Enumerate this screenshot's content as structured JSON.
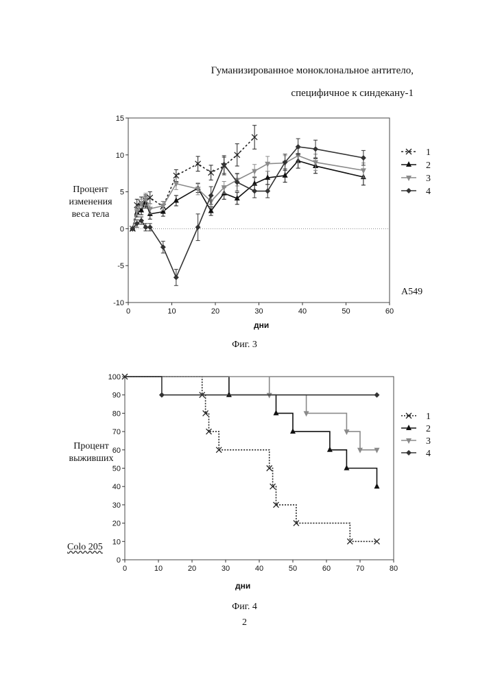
{
  "header": {
    "line1": "Гуманизированное моноклональное антитело,",
    "line2": "специфичное к синдекану-1"
  },
  "page_number": "2",
  "chart_data": [
    {
      "type": "line",
      "caption": "Фиг. 3",
      "ylabel": "Процент изменения веса тела",
      "xlabel": "дни",
      "annotation": "A549",
      "xlim": [
        0,
        60
      ],
      "ylim": [
        -10,
        15
      ],
      "xticks": [
        0,
        10,
        20,
        30,
        40,
        50,
        60
      ],
      "yticks": [
        -10,
        -5,
        0,
        5,
        10,
        15
      ],
      "series": [
        {
          "name": "1",
          "color": "#222222",
          "dash": "3,3",
          "marker": "x",
          "x": [
            1,
            2,
            3,
            4,
            5,
            8,
            11,
            16,
            19,
            22,
            25,
            29
          ],
          "y": [
            0,
            3.2,
            3.5,
            3.8,
            4.2,
            3.0,
            7.2,
            8.8,
            7.6,
            8.5,
            10,
            12.4
          ],
          "err": [
            0,
            0.8,
            0.8,
            0.8,
            0.8,
            0.7,
            0.8,
            1.0,
            1.0,
            1.2,
            1.5,
            1.6
          ]
        },
        {
          "name": "2",
          "color": "#111111",
          "dash": "",
          "marker": "triangle-up",
          "x": [
            1,
            2,
            3,
            4,
            5,
            8,
            11,
            16,
            19,
            22,
            25,
            29,
            32,
            36,
            39,
            43,
            54
          ],
          "y": [
            0,
            2.2,
            2.5,
            3.6,
            2.0,
            2.3,
            3.8,
            5.5,
            2.4,
            4.8,
            4.1,
            6.1,
            6.9,
            7.2,
            9.2,
            8.5,
            7.0
          ],
          "err": [
            0,
            0.6,
            0.6,
            0.8,
            0.7,
            0.6,
            0.7,
            0.6,
            0.6,
            0.8,
            0.8,
            0.9,
            0.9,
            0.9,
            1.0,
            1.0,
            1.1
          ]
        },
        {
          "name": "3",
          "color": "#8a8a8a",
          "dash": "",
          "marker": "triangle-down",
          "x": [
            1,
            2,
            3,
            4,
            5,
            8,
            11,
            16,
            19,
            22,
            25,
            29,
            32,
            36,
            39,
            43,
            54
          ],
          "y": [
            0,
            2.4,
            3.4,
            4.0,
            2.7,
            3.1,
            6.1,
            5.4,
            3.7,
            5.6,
            6.6,
            7.8,
            8.8,
            8.9,
            9.9,
            9.0,
            7.9
          ],
          "err": [
            0,
            0.6,
            0.6,
            0.8,
            0.7,
            0.6,
            0.8,
            0.8,
            0.8,
            0.8,
            0.8,
            0.9,
            1.0,
            1.0,
            1.0,
            1.1,
            1.0
          ]
        },
        {
          "name": "4",
          "color": "#333333",
          "dash": "",
          "marker": "diamond",
          "x": [
            1,
            2,
            3,
            4,
            5,
            8,
            11,
            16,
            19,
            22,
            25,
            29,
            32,
            36,
            39,
            43,
            54
          ],
          "y": [
            0,
            0.7,
            1.1,
            0.2,
            0.2,
            -2.5,
            -6.6,
            0.2,
            4.5,
            8.7,
            6.3,
            5.1,
            5.1,
            9.0,
            11.1,
            10.8,
            9.6
          ],
          "err": [
            0,
            0.5,
            0.5,
            0.5,
            0.5,
            0.8,
            1.1,
            1.8,
            1.2,
            1.2,
            1.2,
            0.9,
            0.9,
            1.1,
            1.1,
            1.2,
            1.0
          ]
        }
      ]
    },
    {
      "type": "line",
      "step": true,
      "caption": "Фиг. 4",
      "ylabel": "Процент выживших",
      "xlabel": "дни",
      "annotation": "Colo 205",
      "xlim": [
        0,
        80
      ],
      "ylim": [
        0,
        100
      ],
      "xticks": [
        0,
        10,
        20,
        30,
        40,
        50,
        60,
        70,
        80
      ],
      "yticks": [
        0,
        10,
        20,
        30,
        40,
        50,
        60,
        70,
        80,
        90,
        100
      ],
      "series": [
        {
          "name": "1",
          "color": "#222222",
          "dash": "2,2",
          "marker": "x",
          "x": [
            0,
            23,
            24,
            25,
            28,
            43,
            44,
            45,
            51,
            67,
            75
          ],
          "y": [
            100,
            90,
            80,
            70,
            60,
            50,
            40,
            30,
            20,
            10,
            10
          ]
        },
        {
          "name": "2",
          "color": "#111111",
          "dash": "",
          "marker": "triangle-up",
          "x": [
            0,
            31,
            45,
            50,
            61,
            66,
            75
          ],
          "y": [
            100,
            90,
            80,
            70,
            60,
            50,
            40
          ]
        },
        {
          "name": "3",
          "color": "#8a8a8a",
          "dash": "",
          "marker": "triangle-down",
          "x": [
            0,
            43,
            54,
            66,
            70,
            75
          ],
          "y": [
            100,
            90,
            80,
            70,
            60,
            60
          ]
        },
        {
          "name": "4",
          "color": "#333333",
          "dash": "",
          "marker": "diamond",
          "x": [
            0,
            11,
            75
          ],
          "y": [
            100,
            90,
            90
          ]
        }
      ]
    }
  ]
}
